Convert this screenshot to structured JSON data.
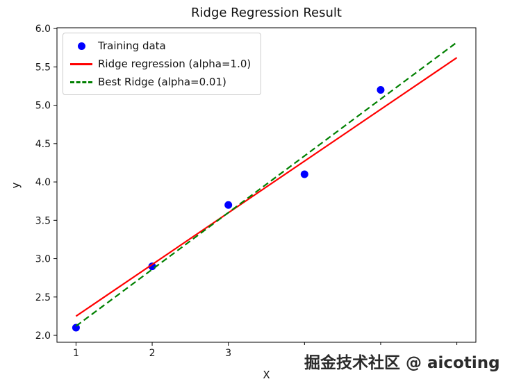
{
  "watermark": {
    "text": "掘金技术社区 @ aicoting"
  },
  "chart_data": {
    "type": "scatter",
    "title": "Ridge Regression Result",
    "xlabel": "X",
    "ylabel": "y",
    "xlim": [
      0.75,
      6.25
    ],
    "ylim": [
      1.91,
      6.01
    ],
    "grid": false,
    "legend_position": "upper left",
    "xticks": {
      "values": [
        1,
        2,
        3,
        4,
        5,
        6
      ],
      "labels": [
        "1",
        "2",
        "3",
        "4",
        "5",
        "6"
      ]
    },
    "yticks": {
      "values": [
        2.0,
        2.5,
        3.0,
        3.5,
        4.0,
        4.5,
        5.0,
        5.5,
        6.0
      ],
      "labels": [
        "2.0",
        "2.5",
        "3.0",
        "3.5",
        "4.0",
        "4.5",
        "5.0",
        "5.5",
        "6.0"
      ]
    },
    "series": [
      {
        "name": "Training data",
        "type": "scatter",
        "color": "#0000ff",
        "x": [
          1,
          2,
          3,
          4,
          5
        ],
        "y": [
          2.1,
          2.9,
          3.7,
          4.1,
          5.2
        ]
      },
      {
        "name": "Ridge regression (alpha=1.0)",
        "type": "line",
        "style": "solid",
        "color": "#ff0000",
        "x": [
          1,
          6
        ],
        "y": [
          2.25,
          5.62
        ]
      },
      {
        "name": "Best Ridge (alpha=0.01)",
        "type": "line",
        "style": "dashed",
        "color": "#008000",
        "x": [
          1,
          6
        ],
        "y": [
          2.12,
          5.82
        ]
      }
    ]
  }
}
